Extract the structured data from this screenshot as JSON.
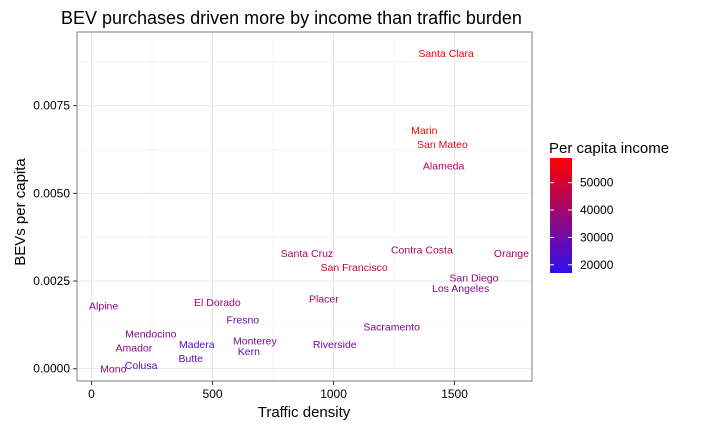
{
  "chart_data": {
    "type": "scatter",
    "title": "BEV purchases driven more by income than traffic burden",
    "xlabel": "Traffic density",
    "ylabel": "BEVs per capita",
    "xlim": [
      -60,
      1820
    ],
    "ylim": [
      -0.00035,
      0.0096
    ],
    "x_ticks": [
      0,
      500,
      1000,
      1500
    ],
    "x_tick_labels": [
      "0",
      "500",
      "1000",
      "1500"
    ],
    "y_ticks": [
      0,
      0.0025,
      0.005,
      0.0075
    ],
    "y_tick_labels": [
      "0.0000",
      "0.0025",
      "0.0050",
      "0.0075"
    ],
    "grid": true,
    "legend": {
      "title": "Per capita income",
      "position": "right",
      "min": 17000,
      "max": 59000,
      "low_color": "#2F10F0",
      "high_color": "#FF0000",
      "ticks": [
        20000,
        30000,
        40000,
        50000
      ],
      "tick_labels": [
        "20000",
        "30000",
        "40000",
        "50000"
      ]
    },
    "points": [
      {
        "label": "Santa Clara",
        "x": 1465,
        "y": 0.009,
        "income": 57000
      },
      {
        "label": "Marin",
        "x": 1375,
        "y": 0.0068,
        "income": 58500
      },
      {
        "label": "San Mateo",
        "x": 1450,
        "y": 0.0064,
        "income": 55000
      },
      {
        "label": "Alameda",
        "x": 1455,
        "y": 0.0058,
        "income": 44000
      },
      {
        "label": "Contra Costa",
        "x": 1365,
        "y": 0.0034,
        "income": 43000
      },
      {
        "label": "Orange",
        "x": 1735,
        "y": 0.0033,
        "income": 42000
      },
      {
        "label": "Santa Cruz",
        "x": 890,
        "y": 0.0033,
        "income": 41000
      },
      {
        "label": "San Francisco",
        "x": 1085,
        "y": 0.0029,
        "income": 50000
      },
      {
        "label": "San Diego",
        "x": 1580,
        "y": 0.0026,
        "income": 38000
      },
      {
        "label": "Los Angeles",
        "x": 1525,
        "y": 0.0023,
        "income": 35000
      },
      {
        "label": "Placer",
        "x": 960,
        "y": 0.002,
        "income": 42000
      },
      {
        "label": "El Dorado",
        "x": 520,
        "y": 0.0019,
        "income": 40000
      },
      {
        "label": "Alpine",
        "x": 50,
        "y": 0.0018,
        "income": 37000
      },
      {
        "label": "Fresno",
        "x": 625,
        "y": 0.0014,
        "income": 27000
      },
      {
        "label": "Sacramento",
        "x": 1240,
        "y": 0.0012,
        "income": 33000
      },
      {
        "label": "Mendocino",
        "x": 245,
        "y": 0.001,
        "income": 34000
      },
      {
        "label": "Monterey",
        "x": 675,
        "y": 0.0008,
        "income": 33000
      },
      {
        "label": "Madera",
        "x": 435,
        "y": 0.0007,
        "income": 24000
      },
      {
        "label": "Riverside",
        "x": 1005,
        "y": 0.0007,
        "income": 30000
      },
      {
        "label": "Amador",
        "x": 175,
        "y": 0.0006,
        "income": 36000
      },
      {
        "label": "Kern",
        "x": 650,
        "y": 0.0005,
        "income": 25000
      },
      {
        "label": "Butte",
        "x": 410,
        "y": 0.0003,
        "income": 29000
      },
      {
        "label": "Colusa",
        "x": 205,
        "y": 0.0001,
        "income": 27000
      },
      {
        "label": "Mono",
        "x": 90,
        "y": 0.0,
        "income": 37000
      }
    ]
  }
}
